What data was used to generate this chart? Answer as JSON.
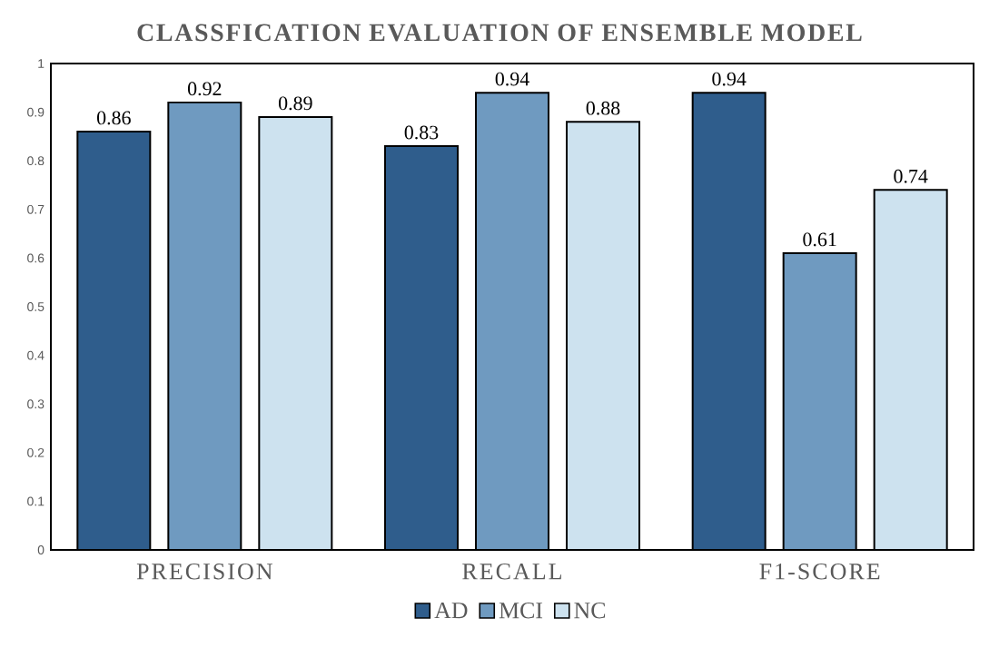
{
  "chart_data": {
    "type": "bar",
    "title": "CLASSFICATION EVALUATION OF ENSEMBLE MODEL",
    "categories": [
      "PRECISION",
      "RECALL",
      "F1-SCORE"
    ],
    "series": [
      {
        "name": "AD",
        "color": "#2f5d8c",
        "values": [
          0.86,
          0.83,
          0.94
        ]
      },
      {
        "name": "MCI",
        "color": "#6f9ac0",
        "values": [
          0.92,
          0.94,
          0.61
        ]
      },
      {
        "name": "NC",
        "color": "#cde2ef",
        "values": [
          0.89,
          0.88,
          0.74
        ]
      }
    ],
    "ylim": [
      0,
      1
    ],
    "yticks": [
      0,
      0.1,
      0.2,
      0.3,
      0.4,
      0.5,
      0.6,
      0.7,
      0.8,
      0.9,
      1
    ],
    "data_labels": true,
    "grid": false,
    "legend": "bottom"
  }
}
